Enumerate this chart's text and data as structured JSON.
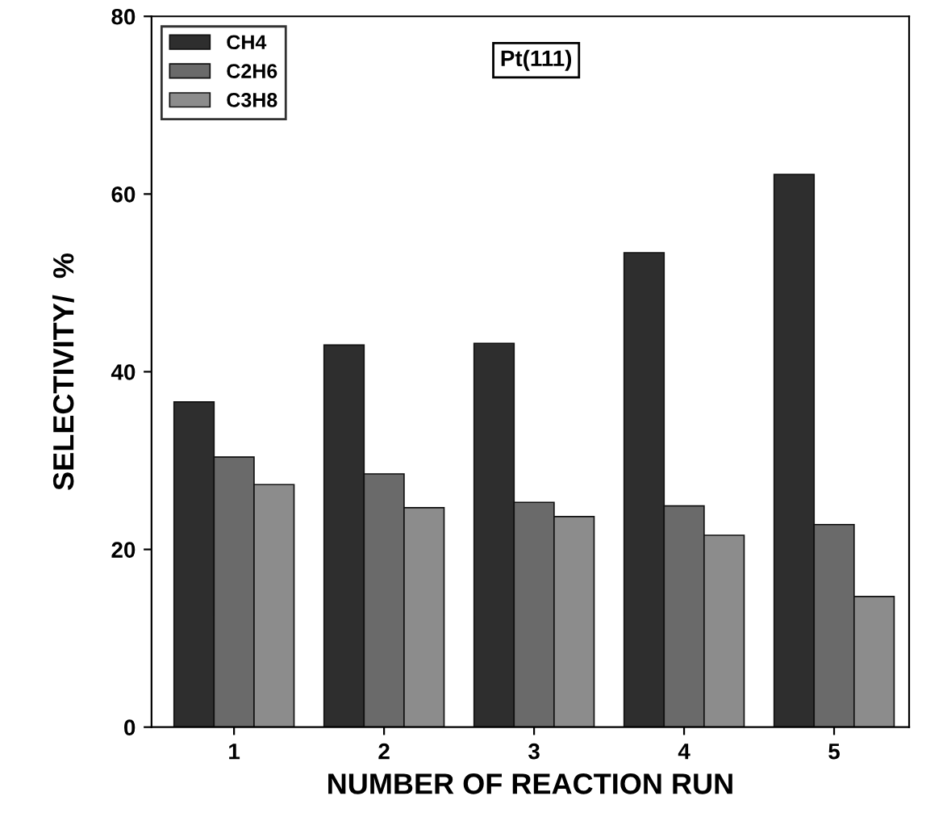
{
  "chart_data": {
    "type": "bar",
    "xlabel": "NUMBER OF REACTION RUN",
    "ylabel": "SELECTIVITY/  %",
    "categories": [
      "1",
      "2",
      "3",
      "4",
      "5"
    ],
    "series": [
      {
        "name": "CH4",
        "color": "#2e2e2e",
        "values": [
          36.6,
          43.0,
          43.2,
          53.4,
          62.2
        ]
      },
      {
        "name": "C2H6",
        "color": "#6a6a6a",
        "values": [
          30.4,
          28.5,
          25.3,
          24.9,
          22.8
        ]
      },
      {
        "name": "C3H8",
        "color": "#8c8c8c",
        "values": [
          27.3,
          24.7,
          23.7,
          21.6,
          14.7
        ]
      }
    ],
    "ylim": [
      0,
      80
    ],
    "yticks": [
      0,
      20,
      40,
      60,
      80
    ],
    "grid": false,
    "legend": "top left",
    "annotations": [
      "Pt(111)"
    ]
  }
}
